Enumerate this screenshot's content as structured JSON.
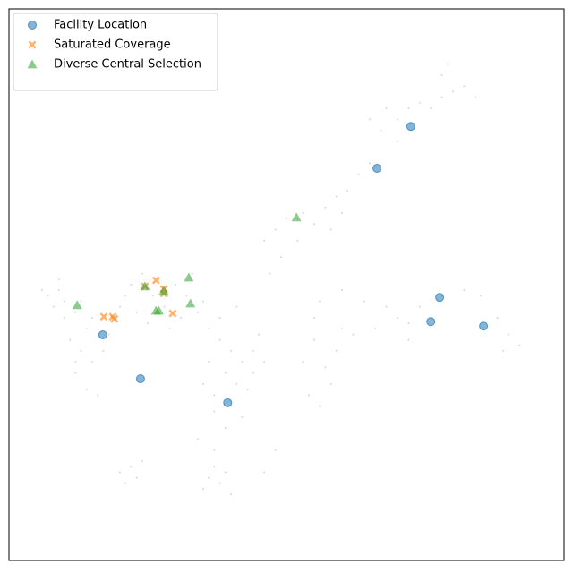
{
  "chart_data": {
    "type": "scatter",
    "xlim": [
      0,
      100
    ],
    "ylim": [
      0,
      100
    ],
    "legend": "upper left",
    "series": [
      {
        "color": "#999999",
        "marker": "dot",
        "x": [
          7,
          9,
          10,
          8,
          12,
          14,
          13,
          15,
          12,
          14,
          16,
          11,
          17,
          10,
          18,
          13,
          6,
          9,
          15,
          12,
          22,
          24,
          26,
          28,
          30,
          32,
          20,
          23,
          27,
          33,
          35,
          31,
          25,
          29,
          21,
          34,
          36,
          38,
          40,
          42,
          39,
          41,
          37,
          43,
          40,
          44,
          45,
          38,
          41,
          44,
          36,
          46,
          39,
          42,
          37,
          35,
          55,
          57,
          58,
          54,
          56,
          59,
          55,
          60,
          53,
          46,
          48,
          50,
          53,
          55,
          57,
          59,
          61,
          63,
          65,
          52,
          49,
          47,
          58,
          60,
          65,
          68,
          70,
          72,
          74,
          76,
          78,
          80,
          82,
          84,
          78,
          79,
          70,
          67,
          56,
          60,
          64,
          68,
          70,
          72,
          74,
          78,
          82,
          85,
          88,
          90,
          92,
          89,
          72,
          66,
          62,
          20,
          22,
          23,
          24,
          21,
          36,
          37,
          38,
          39,
          35,
          40,
          37,
          34,
          48,
          46
        ],
        "y": [
          48,
          49,
          47,
          46,
          45,
          42,
          38,
          36,
          34,
          31,
          30,
          40,
          38,
          44,
          41,
          47,
          49,
          51,
          44,
          36,
          50,
          52,
          48,
          46,
          50,
          48,
          46,
          45,
          51,
          52,
          47,
          44,
          43,
          42,
          48,
          45,
          42,
          40,
          38,
          36,
          34,
          32,
          30,
          31,
          28,
          38,
          41,
          44,
          46,
          34,
          36,
          36,
          24,
          26,
          27,
          32,
          40,
          35,
          32,
          30,
          28,
          38,
          44,
          42,
          36,
          58,
          60,
          62,
          63,
          61,
          64,
          66,
          67,
          70,
          72,
          58,
          55,
          52,
          60,
          63,
          80,
          82,
          80,
          82,
          83,
          82,
          84,
          85,
          86,
          84,
          88,
          90,
          76,
          78,
          47,
          49,
          47,
          46,
          44,
          43,
          46,
          48,
          49,
          48,
          44,
          41,
          39,
          38,
          40,
          42,
          41,
          16,
          17,
          15,
          18,
          14,
          15,
          17,
          14,
          16,
          13,
          12,
          20,
          22,
          20,
          16
        ]
      },
      {
        "name": "Facility Location",
        "color": "#1f77b4",
        "marker": "o",
        "x": [
          72.4,
          66.3,
          77.6,
          76.0,
          85.5,
          16.9,
          23.7,
          39.4
        ],
        "y": [
          78.7,
          71.1,
          47.7,
          43.3,
          42.5,
          40.9,
          32.95,
          28.6
        ]
      },
      {
        "name": "Saturated Coverage",
        "color": "#ff7f0e",
        "marker": "X",
        "x": [
          26.5,
          27.9,
          27.9,
          17.1,
          18.7,
          19.0,
          29.5,
          24.5
        ],
        "y": [
          50.8,
          49.2,
          48.4,
          44.2,
          44.2,
          43.8,
          44.8,
          49.7
        ]
      },
      {
        "name": "Diverse Central Selection",
        "color": "#2ca02c",
        "marker": "^",
        "x": [
          51.8,
          32.4,
          24.5,
          32.7,
          12.3,
          26.5,
          27.0,
          27.9
        ],
        "y": [
          62.2,
          51.3,
          49.7,
          46.6,
          46.3,
          45.3,
          45.3,
          48.9
        ]
      }
    ]
  }
}
